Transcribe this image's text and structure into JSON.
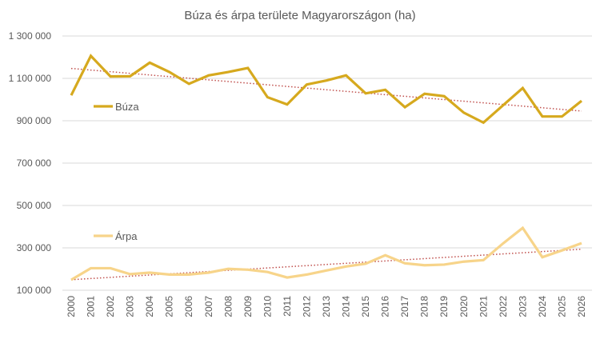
{
  "chart_data": {
    "type": "line",
    "title": "Búza és árpa területe Magyarországon (ha)",
    "x": [
      2000,
      2001,
      2002,
      2003,
      2004,
      2005,
      2006,
      2007,
      2008,
      2009,
      2010,
      2011,
      2012,
      2013,
      2014,
      2015,
      2016,
      2017,
      2018,
      2019,
      2020,
      2021,
      2022,
      2023,
      2024,
      2025,
      2026
    ],
    "ylim": [
      100000,
      1300000
    ],
    "yticks": [
      100000,
      300000,
      500000,
      700000,
      900000,
      1100000,
      1300000
    ],
    "ytick_labels": [
      "100 000",
      "300 000",
      "500 000",
      "700 000",
      "900 000",
      "1 100 000",
      "1 300 000"
    ],
    "grid": "horizontal",
    "legend_placement": "inside, next to each series",
    "series": [
      {
        "name": "Búza",
        "color": "#D6A91E",
        "values": [
          1020000,
          1206000,
          1109000,
          1110000,
          1174000,
          1130000,
          1074000,
          1114000,
          1130000,
          1149000,
          1011000,
          977000,
          1071000,
          1090000,
          1114000,
          1029000,
          1046000,
          964000,
          1027000,
          1016000,
          938000,
          891000,
          973000,
          1054000,
          920000,
          920000,
          994000
        ]
      },
      {
        "name": "Árpa",
        "color": "#F7D48A",
        "values": [
          149000,
          204000,
          204000,
          176000,
          183000,
          174000,
          174000,
          183000,
          201000,
          197000,
          186000,
          160000,
          174000,
          193000,
          212000,
          225000,
          265000,
          227000,
          218000,
          221000,
          235000,
          242000,
          321000,
          394000,
          256000,
          288000,
          322000
        ]
      }
    ],
    "trendlines": {
      "type": "linear",
      "style": "dotted",
      "color": "#C0504D"
    }
  }
}
